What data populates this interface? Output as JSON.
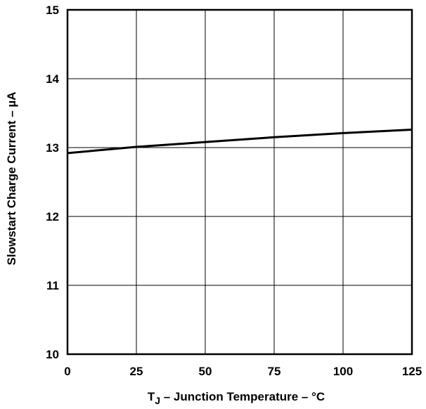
{
  "chart_data": {
    "type": "line",
    "title": "",
    "xlabel_main": "T",
    "xlabel_sub": "J",
    "xlabel_rest": " – Junction Temperature – °C",
    "ylabel": "Slowstart Charge Current – µA",
    "xlim": [
      0,
      125
    ],
    "ylim": [
      10,
      15
    ],
    "x_ticks": [
      "0",
      "25",
      "50",
      "75",
      "100",
      "125"
    ],
    "y_ticks": [
      "10",
      "11",
      "12",
      "13",
      "14",
      "15"
    ],
    "grid": true,
    "series": [
      {
        "x": [
          0,
          25,
          50,
          75,
          100,
          125
        ],
        "values": [
          12.92,
          13.01,
          13.08,
          13.15,
          13.21,
          13.26
        ]
      }
    ]
  }
}
